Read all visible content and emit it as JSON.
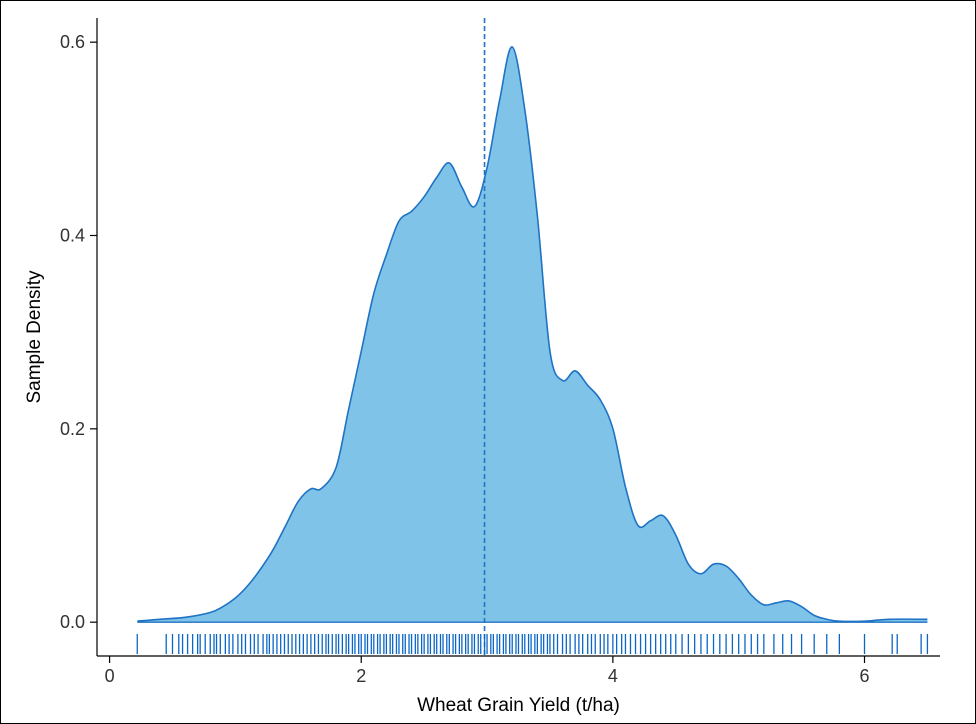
{
  "chart_data": {
    "type": "area",
    "title": "",
    "xlabel": "Wheat Grain Yield (t/ha)",
    "ylabel": "Sample Density",
    "xlim": [
      -0.1,
      6.6
    ],
    "ylim": [
      -0.035,
      0.625
    ],
    "x_ticks": [
      0,
      2,
      4,
      6
    ],
    "x_tick_labels": [
      "0",
      "2",
      "4",
      "6"
    ],
    "y_ticks": [
      0.0,
      0.2,
      0.4,
      0.6
    ],
    "y_tick_labels": [
      "0.0",
      "0.2",
      "0.4",
      "0.6"
    ],
    "grid": false,
    "legend": "none",
    "fill_color": "#7fc4e8",
    "line_color": "#1f73c4",
    "rug_color": "#0a66c8",
    "reference_line": {
      "x": 2.98,
      "style": "dashed"
    },
    "series": [
      {
        "x": [
          0.22,
          0.4,
          0.6,
          0.8,
          0.9,
          1.0,
          1.1,
          1.2,
          1.3,
          1.4,
          1.5,
          1.6,
          1.68,
          1.8,
          1.9,
          2.0,
          2.1,
          2.2,
          2.3,
          2.4,
          2.5,
          2.6,
          2.7,
          2.8,
          2.9,
          3.0,
          3.1,
          3.2,
          3.3,
          3.4,
          3.5,
          3.6,
          3.7,
          3.8,
          3.9,
          4.0,
          4.1,
          4.2,
          4.3,
          4.4,
          4.5,
          4.6,
          4.7,
          4.8,
          4.9,
          5.0,
          5.1,
          5.2,
          5.3,
          5.4,
          5.5,
          5.6,
          5.7,
          5.8,
          6.0,
          6.2,
          6.5
        ],
        "y": [
          0.001,
          0.003,
          0.005,
          0.01,
          0.016,
          0.025,
          0.038,
          0.055,
          0.075,
          0.1,
          0.125,
          0.138,
          0.138,
          0.16,
          0.22,
          0.28,
          0.34,
          0.38,
          0.415,
          0.425,
          0.44,
          0.46,
          0.475,
          0.45,
          0.43,
          0.47,
          0.54,
          0.595,
          0.53,
          0.42,
          0.28,
          0.25,
          0.26,
          0.245,
          0.23,
          0.2,
          0.14,
          0.1,
          0.105,
          0.11,
          0.09,
          0.06,
          0.05,
          0.06,
          0.058,
          0.045,
          0.028,
          0.018,
          0.02,
          0.022,
          0.016,
          0.007,
          0.003,
          0.001,
          0.001,
          0.003,
          0.003
        ]
      }
    ],
    "rug": [
      0.22,
      0.45,
      0.5,
      0.55,
      0.58,
      0.62,
      0.66,
      0.7,
      0.72,
      0.76,
      0.8,
      0.83,
      0.85,
      0.88,
      0.92,
      0.95,
      0.98,
      1.02,
      1.05,
      1.08,
      1.12,
      1.15,
      1.18,
      1.22,
      1.25,
      1.27,
      1.3,
      1.33,
      1.36,
      1.39,
      1.42,
      1.45,
      1.48,
      1.51,
      1.54,
      1.57,
      1.6,
      1.63,
      1.66,
      1.69,
      1.72,
      1.74,
      1.77,
      1.8,
      1.82,
      1.85,
      1.88,
      1.9,
      1.93,
      1.95,
      1.98,
      2.0,
      2.03,
      2.05,
      2.08,
      2.1,
      2.13,
      2.15,
      2.18,
      2.2,
      2.23,
      2.25,
      2.28,
      2.3,
      2.33,
      2.35,
      2.38,
      2.4,
      2.43,
      2.45,
      2.48,
      2.5,
      2.53,
      2.55,
      2.58,
      2.6,
      2.63,
      2.65,
      2.68,
      2.7,
      2.73,
      2.75,
      2.78,
      2.8,
      2.83,
      2.85,
      2.88,
      2.9,
      2.93,
      2.95,
      2.98,
      3.0,
      3.03,
      3.05,
      3.08,
      3.1,
      3.13,
      3.15,
      3.18,
      3.2,
      3.23,
      3.25,
      3.28,
      3.3,
      3.33,
      3.35,
      3.38,
      3.4,
      3.43,
      3.45,
      3.48,
      3.5,
      3.53,
      3.56,
      3.6,
      3.63,
      3.66,
      3.7,
      3.73,
      3.76,
      3.8,
      3.83,
      3.86,
      3.9,
      3.93,
      3.96,
      4.0,
      4.03,
      4.07,
      4.1,
      4.14,
      4.18,
      4.22,
      4.26,
      4.3,
      4.34,
      4.38,
      4.42,
      4.46,
      4.5,
      4.55,
      4.6,
      4.65,
      4.7,
      4.75,
      4.8,
      4.85,
      4.9,
      4.95,
      5.0,
      5.05,
      5.1,
      5.15,
      5.2,
      5.28,
      5.35,
      5.42,
      5.5,
      5.6,
      5.7,
      5.8,
      6.0,
      6.22,
      6.26,
      6.45,
      6.5
    ]
  }
}
